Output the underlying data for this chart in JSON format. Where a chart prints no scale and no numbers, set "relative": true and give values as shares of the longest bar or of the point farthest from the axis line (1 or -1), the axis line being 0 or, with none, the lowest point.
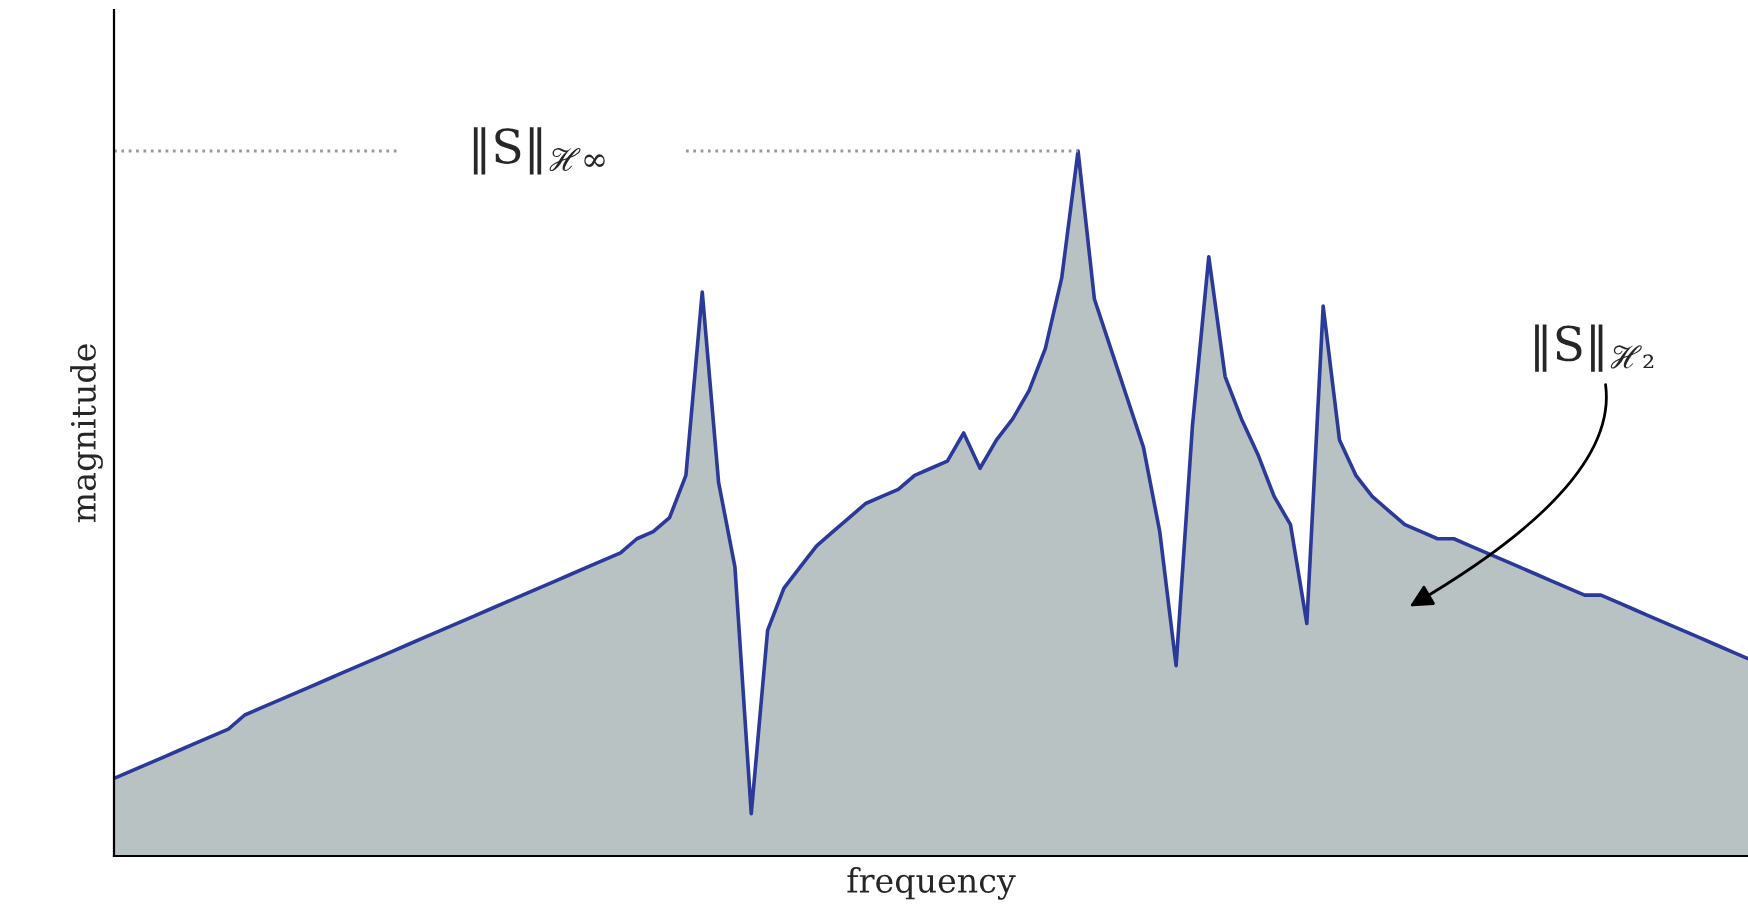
{
  "chart_data": {
    "type": "area",
    "relative": true,
    "xlabel": "frequency",
    "ylabel": "magnitude",
    "categories": [
      null,
      null,
      null,
      null,
      null,
      null,
      null,
      null,
      null,
      null,
      null,
      null,
      null,
      null,
      null,
      null,
      null,
      null,
      null,
      null,
      null,
      null,
      null,
      null,
      null,
      null,
      null,
      null,
      null,
      null,
      null,
      null,
      null,
      null,
      null,
      null,
      null,
      null,
      null,
      null,
      null,
      null,
      null,
      null,
      null,
      null,
      null,
      null,
      null,
      null,
      null,
      null,
      null,
      null,
      null,
      null,
      null,
      null,
      null,
      null,
      null,
      null,
      null,
      null,
      null,
      null,
      null,
      null,
      null,
      null,
      null,
      null,
      null,
      null,
      null,
      null,
      null,
      null,
      null,
      null,
      null,
      null,
      null,
      null,
      null,
      null,
      null,
      null,
      null,
      null,
      null,
      null,
      null,
      null,
      null,
      null,
      null,
      null,
      null,
      null,
      null
    ],
    "series": [
      {
        "color": "#2b3a99",
        "values": [
          0.11,
          0.12,
          0.13,
          0.14,
          0.15,
          0.16,
          0.17,
          0.18,
          0.2,
          0.21,
          0.22,
          0.23,
          0.24,
          0.25,
          0.26,
          0.27,
          0.28,
          0.29,
          0.3,
          0.31,
          0.32,
          0.33,
          0.34,
          0.35,
          0.36,
          0.37,
          0.38,
          0.39,
          0.4,
          0.41,
          0.42,
          0.43,
          0.45,
          0.46,
          0.48,
          0.54,
          0.8,
          0.53,
          0.41,
          0.06,
          0.32,
          0.38,
          0.41,
          0.44,
          0.46,
          0.48,
          0.5,
          0.51,
          0.52,
          0.54,
          0.55,
          0.56,
          0.6,
          0.55,
          0.59,
          0.62,
          0.66,
          0.72,
          0.82,
          1.0,
          0.79,
          0.72,
          0.65,
          0.58,
          0.46,
          0.27,
          0.61,
          0.85,
          0.68,
          0.62,
          0.57,
          0.51,
          0.47,
          0.33,
          0.78,
          0.59,
          0.54,
          0.51,
          0.49,
          0.47,
          0.46,
          0.45,
          0.45,
          0.44,
          0.43,
          0.42,
          0.41,
          0.4,
          0.39,
          0.38,
          0.37,
          0.37,
          0.36,
          0.35,
          0.34,
          0.33,
          0.32,
          0.31,
          0.3,
          0.29,
          0.28
        ]
      }
    ],
    "ref_lines": [
      {
        "axis": "y",
        "value": 1.0,
        "label": "‖S‖$_{ℋ∞}$",
        "color": "#999999",
        "line_style": "dotted"
      }
    ],
    "annotations": [
      "‖S‖$_{ℋ₂}$"
    ]
  }
}
